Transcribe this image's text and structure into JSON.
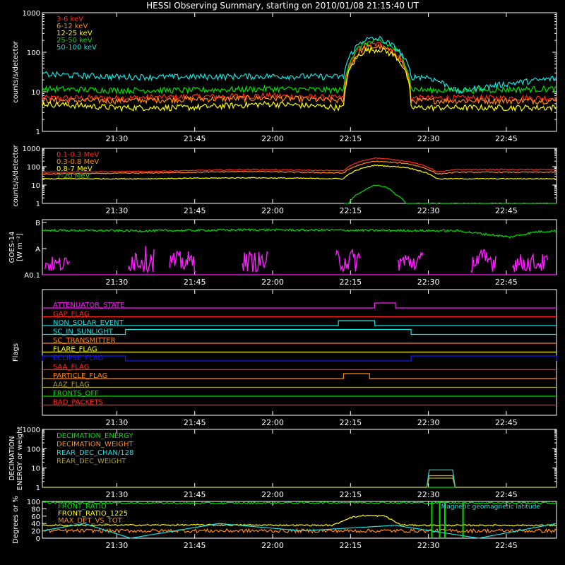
{
  "title": "HESSI Observing Summary, starting on 2010/01/08 21:15:40 UT",
  "time_ticks": [
    "21:30",
    "21:45",
    "22:00",
    "22:15",
    "22:30",
    "22:45"
  ],
  "colors": {
    "background": "#000000",
    "axis": "#ffffff",
    "red": "#ff2a1a",
    "orange": "#ff8a1a",
    "yellow": "#ffff00",
    "green": "#00e000",
    "cyan": "#1ae0e0",
    "magenta": "#ff1aff",
    "blue": "#1a1aff",
    "olive": "#a8a028"
  },
  "chart_data": [
    {
      "type": "line",
      "panel": "hxr",
      "ylabel": "counts/s/detector",
      "yscale": "log",
      "ylim": [
        1,
        1000
      ],
      "y_ticks": [
        "1",
        "10",
        "100",
        "1000"
      ],
      "x_unit": "minutes since 21:15:40 UT",
      "xlim": [
        0,
        99
      ],
      "legend_position": "top-left",
      "series": [
        {
          "name": "3-6 keV",
          "color": "red",
          "x": [
            0,
            14,
            28,
            44,
            58,
            62,
            65,
            68,
            71,
            74,
            80,
            99
          ],
          "y": [
            7,
            7,
            7.5,
            8,
            7,
            150,
            160,
            100,
            7,
            7,
            7,
            7
          ]
        },
        {
          "name": "6-12 keV",
          "color": "orange",
          "x": [
            0,
            14,
            28,
            44,
            58,
            62,
            65,
            68,
            71,
            74,
            80,
            99
          ],
          "y": [
            6,
            6,
            6.5,
            7,
            6,
            130,
            140,
            90,
            6,
            6,
            6,
            6
          ]
        },
        {
          "name": "12-25 keV",
          "color": "yellow",
          "x": [
            0,
            14,
            28,
            44,
            58,
            62,
            65,
            68,
            71,
            74,
            80,
            99
          ],
          "y": [
            5,
            4,
            4,
            5,
            4,
            110,
            120,
            80,
            4,
            4,
            4,
            4
          ]
        },
        {
          "name": "25-50 keV",
          "color": "green",
          "x": [
            0,
            14,
            28,
            44,
            58,
            62,
            65,
            68,
            71,
            74,
            80,
            99
          ],
          "y": [
            12,
            11,
            11,
            12,
            11,
            170,
            190,
            120,
            12,
            11,
            11,
            12
          ]
        },
        {
          "name": "50-100 keV",
          "color": "cyan",
          "x": [
            0,
            14,
            28,
            44,
            58,
            62,
            65,
            68,
            71,
            74,
            80,
            99
          ],
          "y": [
            28,
            24,
            24,
            25,
            24,
            210,
            220,
            130,
            24,
            24,
            10,
            22
          ]
        }
      ]
    },
    {
      "type": "line",
      "panel": "gamma",
      "ylabel": "counts/s/detector",
      "yscale": "log",
      "ylim": [
        1,
        1000
      ],
      "y_ticks": [
        "1",
        "10",
        "100",
        "1000"
      ],
      "x_unit": "minutes since 21:15:40 UT",
      "xlim": [
        0,
        99
      ],
      "legend_position": "top-left",
      "series": [
        {
          "name": "0.1-0.3 MeV",
          "color": "red",
          "x": [
            0,
            20,
            40,
            58,
            64,
            70,
            76,
            80,
            99
          ],
          "y": [
            50,
            55,
            70,
            60,
            300,
            200,
            50,
            70,
            70
          ]
        },
        {
          "name": "0.3-0.8 MeV",
          "color": "orange",
          "x": [
            0,
            20,
            40,
            58,
            64,
            70,
            76,
            80,
            99
          ],
          "y": [
            40,
            45,
            55,
            45,
            200,
            150,
            40,
            50,
            50
          ]
        },
        {
          "name": "0.8-7 MeV",
          "color": "yellow",
          "x": [
            0,
            20,
            40,
            58,
            64,
            70,
            76,
            80,
            99
          ],
          "y": [
            22,
            22,
            25,
            22,
            120,
            90,
            22,
            22,
            22
          ]
        },
        {
          "name": "7-20 MeV",
          "color": "green",
          "x": [
            58,
            59,
            62,
            64,
            66,
            68,
            70,
            99
          ],
          "y": [
            1,
            1,
            5,
            10,
            8,
            3,
            1,
            1
          ]
        }
      ]
    },
    {
      "type": "line",
      "panel": "goes",
      "ylabel": "GOES-14 [W m⁻²]",
      "y_ticks": [
        "A0.1",
        "A",
        "B"
      ],
      "x_unit": "minutes since 21:15:40 UT",
      "xlim": [
        0,
        99
      ],
      "series": [
        {
          "name": "",
          "color": "green",
          "x": [
            0,
            20,
            40,
            60,
            80,
            90,
            95,
            99
          ],
          "y": [
            0.85,
            0.84,
            0.86,
            0.85,
            0.84,
            0.72,
            0.82,
            0.84
          ]
        },
        {
          "name": "",
          "color": "magenta",
          "x": [
            2,
            4,
            18,
            20,
            26,
            28,
            40,
            42,
            58,
            60,
            70,
            72,
            84,
            86,
            92,
            96
          ],
          "y": [
            0.3,
            0.1,
            0.5,
            0.1,
            0.4,
            0.1,
            0.4,
            0.1,
            0.45,
            0.1,
            0.4,
            0.1,
            0.45,
            0.1,
            0.35,
            0.1
          ]
        }
      ]
    },
    {
      "type": "line",
      "panel": "flags",
      "ylabel": "Flags",
      "x_unit": "minutes since 21:15:40 UT",
      "xlim": [
        0,
        99
      ],
      "flags": [
        {
          "name": "ATTENUATOR_STATE",
          "color": "magenta",
          "on": [
            [
              64,
              68
            ]
          ]
        },
        {
          "name": "GAP_FLAG",
          "color": "red",
          "on": []
        },
        {
          "name": "NON_SOLAR_EVENT",
          "color": "cyan",
          "on": [
            [
              57,
              64
            ]
          ]
        },
        {
          "name": "SC_IN_SUNLIGHT",
          "color": "cyan",
          "on": [
            [
              16,
              71
            ]
          ]
        },
        {
          "name": "SC_TRANSMITTER",
          "color": "orange",
          "on": []
        },
        {
          "name": "FLARE_FLAG",
          "color": "yellow",
          "on": []
        },
        {
          "name": "ECLIPSE_FLAG",
          "color": "blue",
          "on": [
            [
              0,
              16
            ],
            [
              71,
              99
            ]
          ]
        },
        {
          "name": "SAA_FLAG",
          "color": "red",
          "on": []
        },
        {
          "name": "PARTICLE_FLAG",
          "color": "orange",
          "on": [
            [
              58,
              63
            ]
          ]
        },
        {
          "name": "AAZ_FLAG",
          "color": "olive",
          "on": []
        },
        {
          "name": "FRONTS_OFF",
          "color": "green",
          "on": []
        },
        {
          "name": "BAD_PACKETS",
          "color": "red",
          "on": []
        }
      ]
    },
    {
      "type": "line",
      "panel": "decimation",
      "ylabel": "DECIMATION ENERGY or weight",
      "yscale": "log",
      "ylim": [
        1,
        1000
      ],
      "y_ticks": [
        "1",
        "10",
        "100",
        "1000"
      ],
      "x_unit": "minutes since 21:15:40 UT",
      "xlim": [
        0,
        99
      ],
      "legend_position": "top-left",
      "series": [
        {
          "name": "DECIMATION_ENERGY",
          "color": "green",
          "x": [
            0,
            99
          ],
          "y": [
            1,
            1
          ]
        },
        {
          "name": "DECIMATION_WEIGHT",
          "color": "orange",
          "x": [
            0,
            74,
            74,
            79,
            79,
            99
          ],
          "y": [
            1,
            1,
            4,
            4,
            1,
            1
          ]
        },
        {
          "name": "REAR_DEC_CHAN/128",
          "color": "cyan",
          "x": [
            0,
            74,
            74,
            79,
            79,
            99
          ],
          "y": [
            1,
            1,
            8,
            8,
            1,
            1
          ]
        },
        {
          "name": "REAR_DEC_WEIGHT",
          "color": "olive",
          "x": [
            0,
            74,
            74,
            79,
            79,
            99
          ],
          "y": [
            1,
            1,
            3,
            3,
            1,
            1
          ]
        }
      ]
    },
    {
      "type": "line",
      "panel": "ratios",
      "ylabel": "Degrees or %",
      "ylim": [
        0,
        100
      ],
      "y_ticks": [
        "0",
        "20",
        "40",
        "60",
        "80",
        "100"
      ],
      "x_unit": "minutes since 21:15:40 UT",
      "xlim": [
        0,
        99
      ],
      "legend_position": "top-left",
      "annotation": "Magnetic geomagnetic latitude",
      "series": [
        {
          "name": "FRONT_RATIO",
          "color": "green",
          "x": [
            0,
            30,
            60,
            75,
            99
          ],
          "y": [
            97,
            95,
            97,
            96,
            96
          ]
        },
        {
          "name": "FRONT_RATIO_1225",
          "color": "yellow",
          "x": [
            0,
            30,
            56,
            59,
            62,
            66,
            69,
            72,
            80,
            99
          ],
          "y": [
            35,
            36,
            35,
            55,
            62,
            60,
            36,
            35,
            35,
            35
          ]
        },
        {
          "name": "MAX_DET_VS_TOT",
          "color": "orange",
          "x": [
            0,
            99
          ],
          "y": [
            20,
            20
          ]
        },
        {
          "name": "",
          "color": "cyan",
          "x": [
            0,
            8,
            17,
            34,
            50,
            68,
            84,
            99
          ],
          "y": [
            20,
            40,
            0,
            40,
            20,
            35,
            0,
            40
          ]
        }
      ]
    }
  ]
}
